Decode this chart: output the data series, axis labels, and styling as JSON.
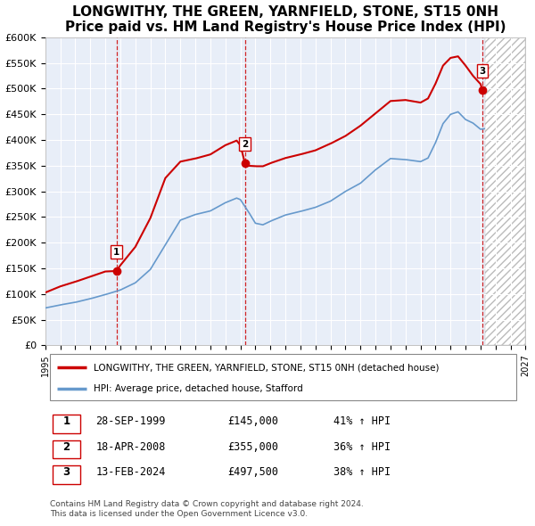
{
  "title": "LONGWITHY, THE GREEN, YARNFIELD, STONE, ST15 0NH",
  "subtitle": "Price paid vs. HM Land Registry's House Price Index (HPI)",
  "title_fontsize": 11,
  "ylabel_ticks": [
    "£0",
    "£50K",
    "£100K",
    "£150K",
    "£200K",
    "£250K",
    "£300K",
    "£350K",
    "£400K",
    "£450K",
    "£500K",
    "£550K",
    "£600K"
  ],
  "ytick_vals": [
    0,
    50000,
    100000,
    150000,
    200000,
    250000,
    300000,
    350000,
    400000,
    450000,
    500000,
    550000,
    600000
  ],
  "xmin": 1995.0,
  "xmax": 2027.0,
  "ymin": 0,
  "ymax": 600000,
  "sale_color": "#cc0000",
  "hpi_color": "#6699cc",
  "vline_color": "#cc0000",
  "bg_color": "#e8eef8",
  "grid_color": "#ffffff",
  "legend_label_sale": "LONGWITHY, THE GREEN, YARNFIELD, STONE, ST15 0NH (detached house)",
  "legend_label_hpi": "HPI: Average price, detached house, Stafford",
  "sales": [
    {
      "date": 1999.74,
      "price": 145000,
      "label": "1"
    },
    {
      "date": 2008.3,
      "price": 355000,
      "label": "2"
    },
    {
      "date": 2024.12,
      "price": 497500,
      "label": "3"
    }
  ],
  "sale_table": [
    {
      "num": "1",
      "date": "28-SEP-1999",
      "price": "£145,000",
      "change": "41% ↑ HPI"
    },
    {
      "num": "2",
      "date": "18-APR-2008",
      "price": "£355,000",
      "change": "36% ↑ HPI"
    },
    {
      "num": "3",
      "date": "13-FEB-2024",
      "price": "£497,500",
      "change": "38% ↑ HPI"
    }
  ],
  "footer": "Contains HM Land Registry data © Crown copyright and database right 2024.\nThis data is licensed under the Open Government Licence v3.0.",
  "hpi_waypoints_x": [
    1995.0,
    1996.0,
    1997.0,
    1998.0,
    1999.0,
    2000.0,
    2001.0,
    2002.0,
    2003.0,
    2004.0,
    2005.0,
    2006.0,
    2007.0,
    2007.75,
    2008.0,
    2008.5,
    2009.0,
    2009.5,
    2010.0,
    2011.0,
    2012.0,
    2013.0,
    2014.0,
    2015.0,
    2016.0,
    2017.0,
    2018.0,
    2019.0,
    2020.0,
    2020.5,
    2021.0,
    2021.5,
    2022.0,
    2022.5,
    2023.0,
    2023.5,
    2024.0,
    2024.25
  ],
  "hpi_waypoints_y": [
    73000,
    79000,
    84000,
    91000,
    99000,
    108000,
    122000,
    148000,
    196000,
    244000,
    255000,
    262000,
    278000,
    287000,
    284000,
    262000,
    238000,
    235000,
    242000,
    254000,
    261000,
    269000,
    281000,
    300000,
    316000,
    342000,
    364000,
    362000,
    358000,
    365000,
    395000,
    432000,
    450000,
    455000,
    440000,
    433000,
    421000,
    422000
  ],
  "red_waypoints_x": [
    1995.0,
    1996.0,
    1997.0,
    1998.0,
    1999.0,
    1999.74,
    2000.0,
    2001.0,
    2002.0,
    2003.0,
    2004.0,
    2005.0,
    2006.0,
    2007.0,
    2007.75,
    2008.0,
    2008.3,
    2008.5,
    2009.0,
    2009.5,
    2010.0,
    2011.0,
    2012.0,
    2013.0,
    2014.0,
    2015.0,
    2016.0,
    2017.0,
    2018.0,
    2019.0,
    2020.0,
    2020.5,
    2021.0,
    2021.5,
    2022.0,
    2022.5,
    2023.0,
    2023.5,
    2024.0,
    2024.12,
    2024.25
  ],
  "red_waypoints_y": [
    103000,
    115000,
    124000,
    134000,
    144000,
    145000,
    156000,
    192000,
    248000,
    326000,
    358000,
    364000,
    372000,
    390000,
    399000,
    390000,
    355000,
    350000,
    349000,
    349000,
    355000,
    365000,
    372000,
    380000,
    393000,
    408000,
    428000,
    452000,
    476000,
    478000,
    473000,
    481000,
    510000,
    545000,
    560000,
    563000,
    545000,
    525000,
    509000,
    497500,
    498000
  ]
}
